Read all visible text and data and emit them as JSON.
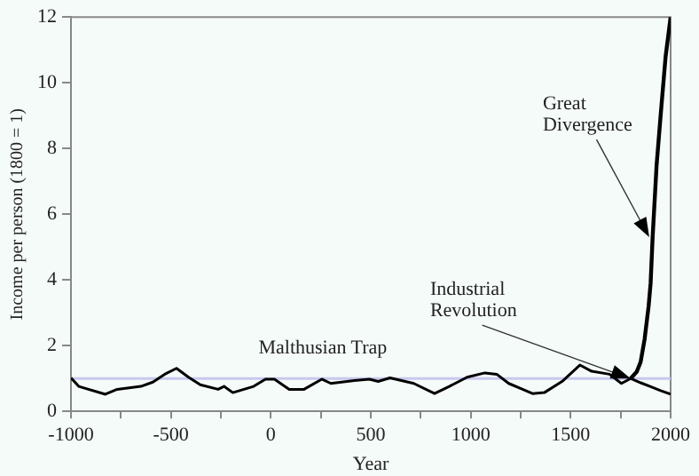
{
  "chart_data": {
    "type": "line",
    "xlabel": "Year",
    "ylabel": "Income per person (1800 = 1)",
    "xlim": [
      -1000,
      2000
    ],
    "xticks": [
      -1000,
      {
        "value": -750,
        "label": null
      },
      -500,
      {
        "value": -250,
        "label": null
      },
      0,
      {
        "value": 250,
        "label": null
      },
      500,
      {
        "value": 750,
        "label": null
      },
      1000,
      {
        "value": 1250,
        "label": null
      },
      1500,
      {
        "value": 1750,
        "label": null
      },
      2000
    ],
    "ylim": [
      0,
      12
    ],
    "yticks": [
      0,
      2,
      4,
      6,
      8,
      10,
      12
    ],
    "grid": false,
    "legend": false,
    "marker": "none",
    "line_style": "solid",
    "series": [
      {
        "color": "#000000",
        "x": [
          -1000,
          -961,
          -828,
          -769,
          -650,
          -590,
          -531,
          -472,
          -412,
          -353,
          -264,
          -234,
          -190,
          -86,
          -27,
          18,
          92,
          166,
          255,
          300,
          418,
          493,
          537,
          596,
          715,
          819,
          893,
          982,
          1071,
          1130,
          1190,
          1249,
          1309,
          1368,
          1457,
          1546,
          1605,
          1694,
          1754,
          1800
        ],
        "values": [
          1.02,
          0.76,
          0.52,
          0.67,
          0.76,
          0.89,
          1.13,
          1.31,
          1.04,
          0.81,
          0.67,
          0.76,
          0.57,
          0.76,
          0.98,
          0.98,
          0.67,
          0.67,
          0.98,
          0.85,
          0.94,
          0.98,
          0.91,
          1.02,
          0.85,
          0.54,
          0.76,
          1.04,
          1.17,
          1.13,
          0.85,
          0.7,
          0.54,
          0.57,
          0.91,
          1.41,
          1.22,
          1.13,
          0.85,
          1.0
        ]
      },
      {
        "color": "#000000",
        "x": [
          1800,
          1850,
          1900,
          1950,
          2000
        ],
        "values": [
          1.0,
          0.87,
          0.75,
          0.63,
          0.52
        ]
      },
      {
        "color": "#000000",
        "x": [
          1800,
          1830,
          1850,
          1870,
          1890,
          1900,
          1910,
          1930,
          1950,
          1975,
          2000
        ],
        "values": [
          1.0,
          1.2,
          1.5,
          2.2,
          3.2,
          3.9,
          5.3,
          7.5,
          9.0,
          10.8,
          12
        ]
      }
    ],
    "ref_lines": [
      {
        "axis": "y",
        "value": 1,
        "color": "#c8c8ee"
      }
    ],
    "annotations": [
      "Malthusian Trap",
      {
        "text": "Industrial Revolution",
        "x": 1800,
        "y": 1
      },
      {
        "text": "Great Divergence",
        "x": 1893,
        "y": 5.3
      }
    ]
  }
}
